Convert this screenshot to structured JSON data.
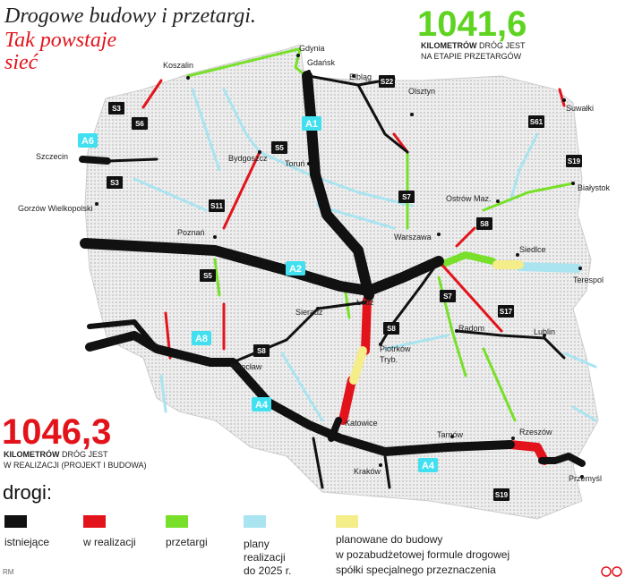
{
  "header": {
    "title": "Drogowe budowy i przetargi.",
    "subtitle": [
      "Tak powstaje",
      "sieć"
    ]
  },
  "stats": [
    {
      "value": "1041,6",
      "unit": "KILOMETRÓW",
      "lines": [
        "DRÓG JEST",
        "NA ETAPIE PRZETARGÓW"
      ]
    },
    {
      "value": "1046,3",
      "unit": "KILOMETRÓW",
      "lines": [
        "DRÓG JEST",
        "W REALIZACJI (PROJEKT I BUDOWA)"
      ]
    }
  ],
  "cities": [
    "Gdynia",
    "Gdańsk",
    "Elbląg",
    "Koszalin",
    "Olsztyn",
    "Suwałki",
    "Szczecin",
    "Bydgoszcz",
    "Toruń",
    "Białystok",
    "Ostrów Maz.",
    "Gorzów Wielkopolski",
    "Warszawa",
    "Poznań",
    "Siedlce",
    "Terespol",
    "Sieradz",
    "Łódź",
    "Radom",
    "Lublin",
    "Piotrków",
    "Tryb.",
    "Wrocław",
    "Katowice",
    "Tarnów",
    "Rzeszów",
    "Kraków",
    "Przemyśl"
  ],
  "road_labels": [
    "S3",
    "S6",
    "S5",
    "S3",
    "S11",
    "S5",
    "S8",
    "S22",
    "S7",
    "S8",
    "S61",
    "S19",
    "S7",
    "S17",
    "S8",
    "S19",
    "A6",
    "A1",
    "A2",
    "A8",
    "A4",
    "A4"
  ],
  "legend": {
    "title": "drogi:",
    "items": [
      [
        "istniejące"
      ],
      [
        "w realizacji"
      ],
      [
        "przetargi"
      ],
      [
        "plany",
        "realizacji",
        "do 2025 r."
      ],
      [
        "planowane do budowy",
        "w pozabudżetowej formule drogowej",
        "spółki specjalnego przeznaczenia"
      ]
    ]
  },
  "credit": "RM"
}
